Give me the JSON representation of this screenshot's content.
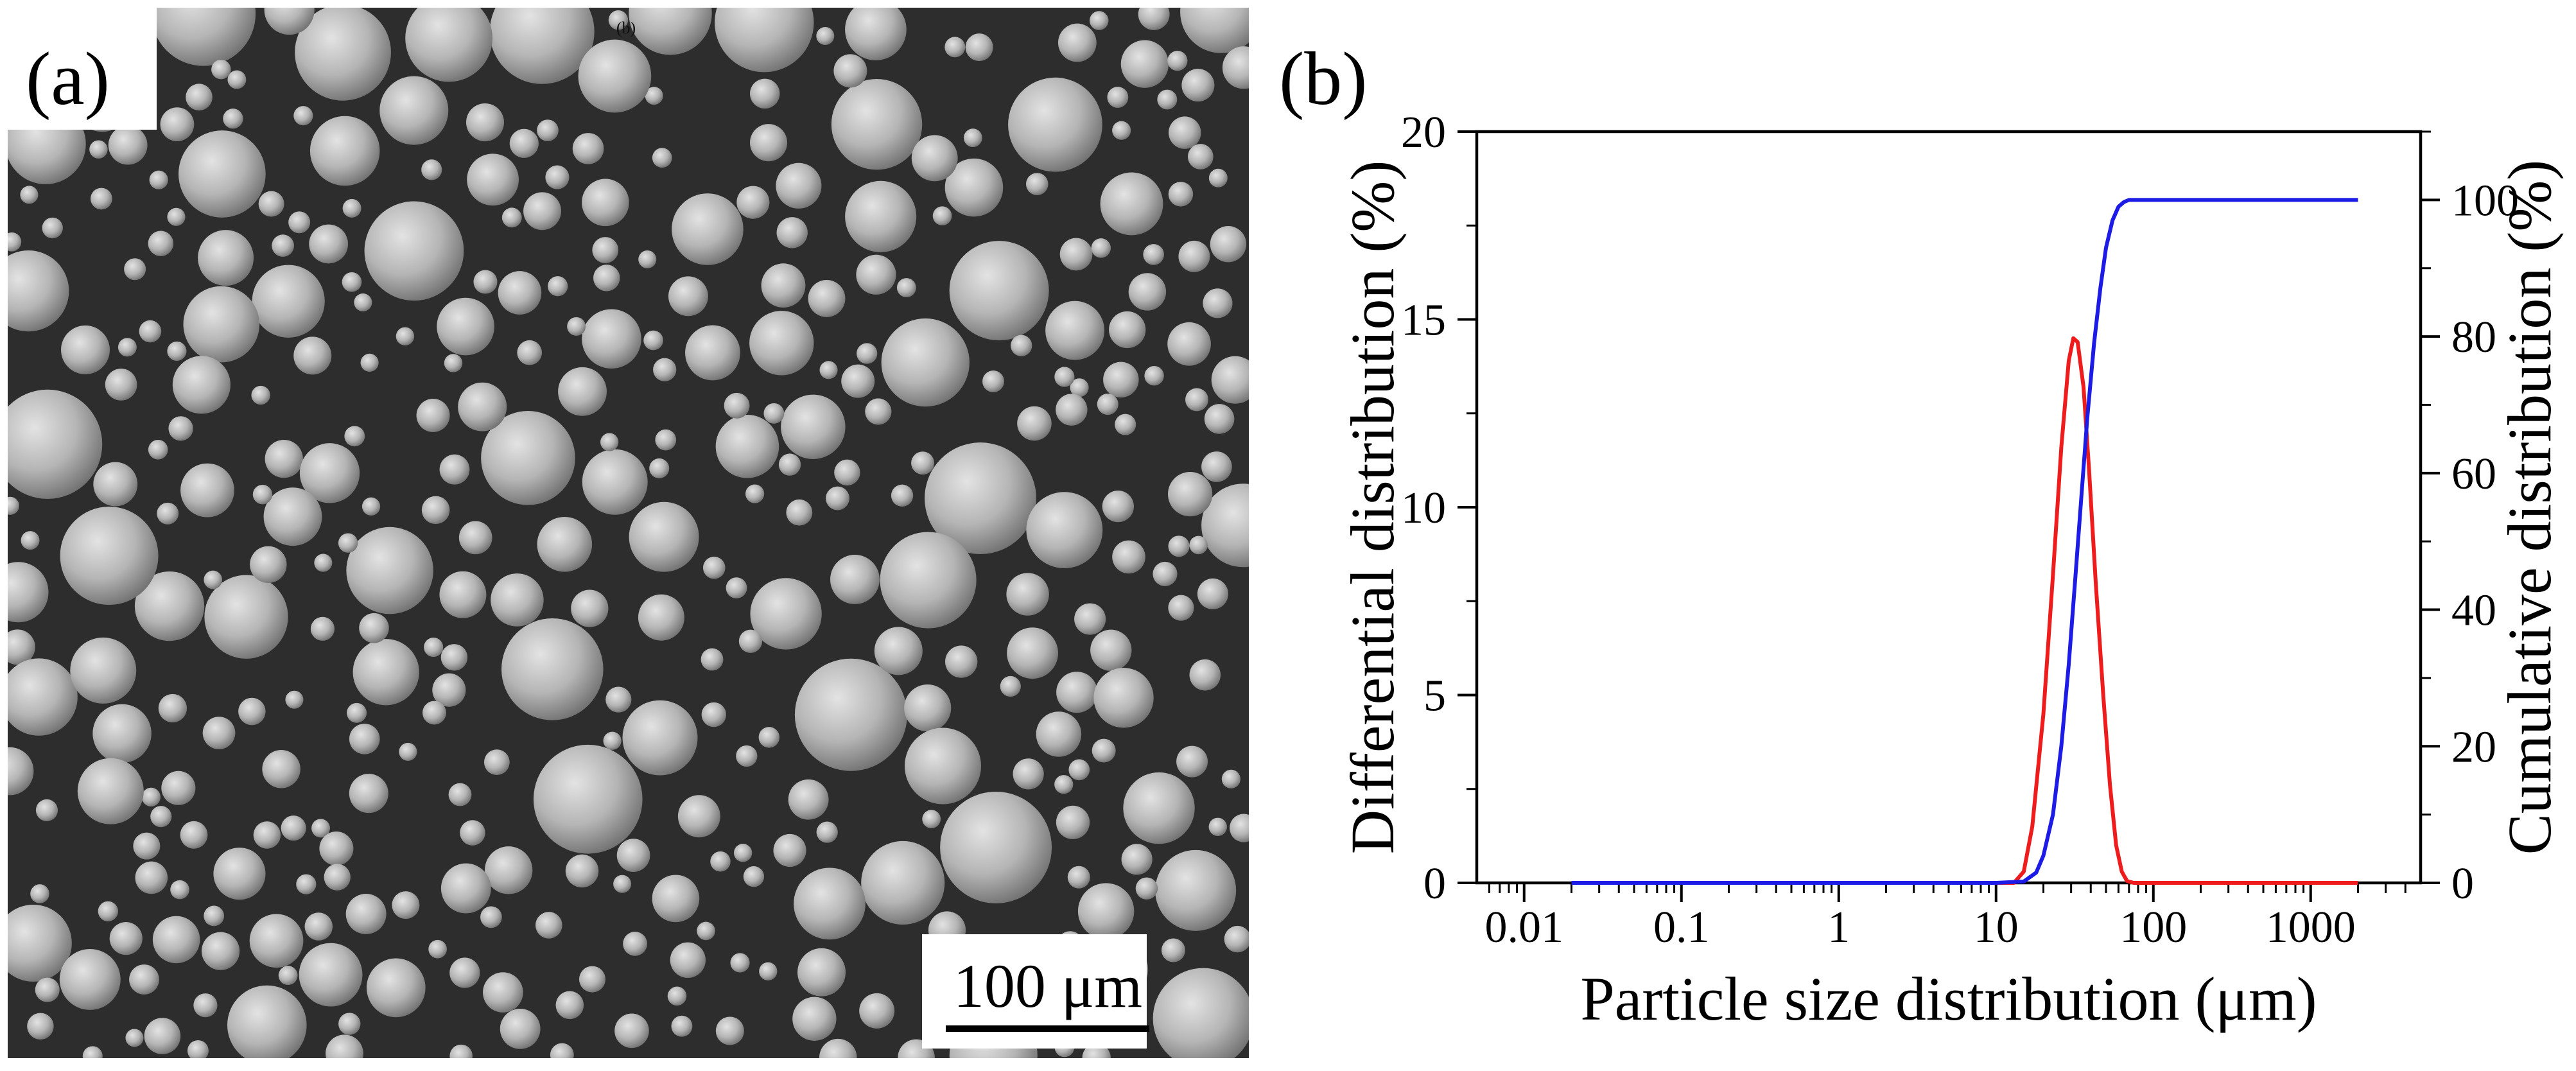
{
  "panels": {
    "a": {
      "label": "(a)"
    },
    "b": {
      "label": "(b)"
    }
  },
  "sem_image": {
    "scale_bar_text": "100 μm",
    "inset_text": "(b)"
  },
  "colors": {
    "background_sem": "#2d2d2d",
    "particle_light": "#c8c8c8",
    "particle_mid": "#8e8e8e",
    "differential": "#ee1c1c",
    "cumulative": "#1c1ce6"
  },
  "chart_data": {
    "type": "line",
    "xlabel": "Particle size distribution (μm)",
    "ylabel": "Differential distribution (%)",
    "y2label": "Cumulative distribution (%)",
    "x_scale": "log",
    "xlim": [
      0.005,
      5000
    ],
    "ylim": [
      0,
      20
    ],
    "y2lim": [
      0,
      110
    ],
    "x_ticks": [
      0.01,
      0.1,
      1,
      10,
      100,
      1000
    ],
    "x_tick_labels": [
      "0.01",
      "0.1",
      "1",
      "10",
      "100",
      "1000"
    ],
    "y_ticks": [
      0,
      5,
      10,
      15,
      20
    ],
    "y_tick_labels": [
      "0",
      "5",
      "10",
      "15",
      "20"
    ],
    "y2_ticks": [
      0,
      20,
      40,
      60,
      80,
      100
    ],
    "y2_tick_labels": [
      "0",
      "20",
      "40",
      "60",
      "80",
      "100"
    ],
    "legend": "none",
    "grid": false,
    "series": [
      {
        "axis": "left",
        "color": "#ee1c1c",
        "x": [
          0.02,
          10,
          13,
          15,
          17,
          20,
          23,
          26,
          29,
          31,
          33,
          36,
          39,
          43,
          48,
          53,
          58,
          63,
          68,
          75,
          90,
          120,
          500,
          2000
        ],
        "y": [
          0,
          0,
          0,
          0.3,
          1.5,
          4.5,
          8.2,
          11.6,
          13.9,
          14.5,
          14.4,
          13.2,
          11.0,
          8.0,
          5.0,
          2.6,
          1.0,
          0.3,
          0.05,
          0,
          0,
          0,
          0,
          0
        ]
      },
      {
        "axis": "right",
        "color": "#1c1ce6",
        "x": [
          0.02,
          10,
          15,
          18,
          20,
          23,
          26,
          29,
          32,
          35,
          38,
          42,
          46,
          50,
          55,
          60,
          65,
          70,
          80,
          100,
          500,
          2000
        ],
        "y": [
          0,
          0,
          0.2,
          1.5,
          4,
          10,
          20,
          32,
          45,
          57,
          68,
          79,
          87,
          93,
          97,
          99,
          99.7,
          100,
          100,
          100,
          100,
          100
        ]
      }
    ]
  }
}
